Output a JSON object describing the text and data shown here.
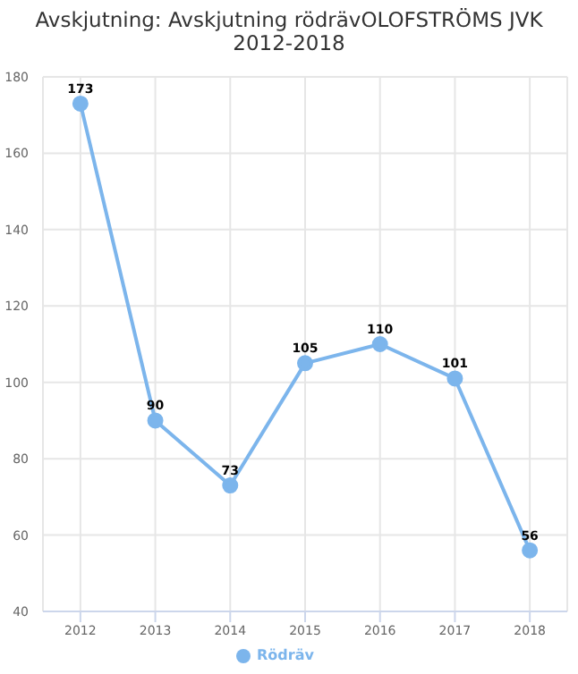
{
  "chart_data": {
    "type": "line",
    "title": "Avskjutning: Avskjutning rödrävOLOFSTRÖMS JVK 2012-2018",
    "categories": [
      "2012",
      "2013",
      "2014",
      "2015",
      "2016",
      "2017",
      "2018"
    ],
    "series": [
      {
        "name": "Rödräv",
        "color": "#7cb5ec",
        "values": [
          173,
          90,
          73,
          105,
          110,
          101,
          56
        ]
      }
    ],
    "ylim": [
      40,
      180
    ],
    "yticks": [
      40,
      60,
      80,
      100,
      120,
      140,
      160,
      180
    ],
    "grid": true,
    "legend": "bottom",
    "marker": "circle",
    "data_labels": true
  }
}
